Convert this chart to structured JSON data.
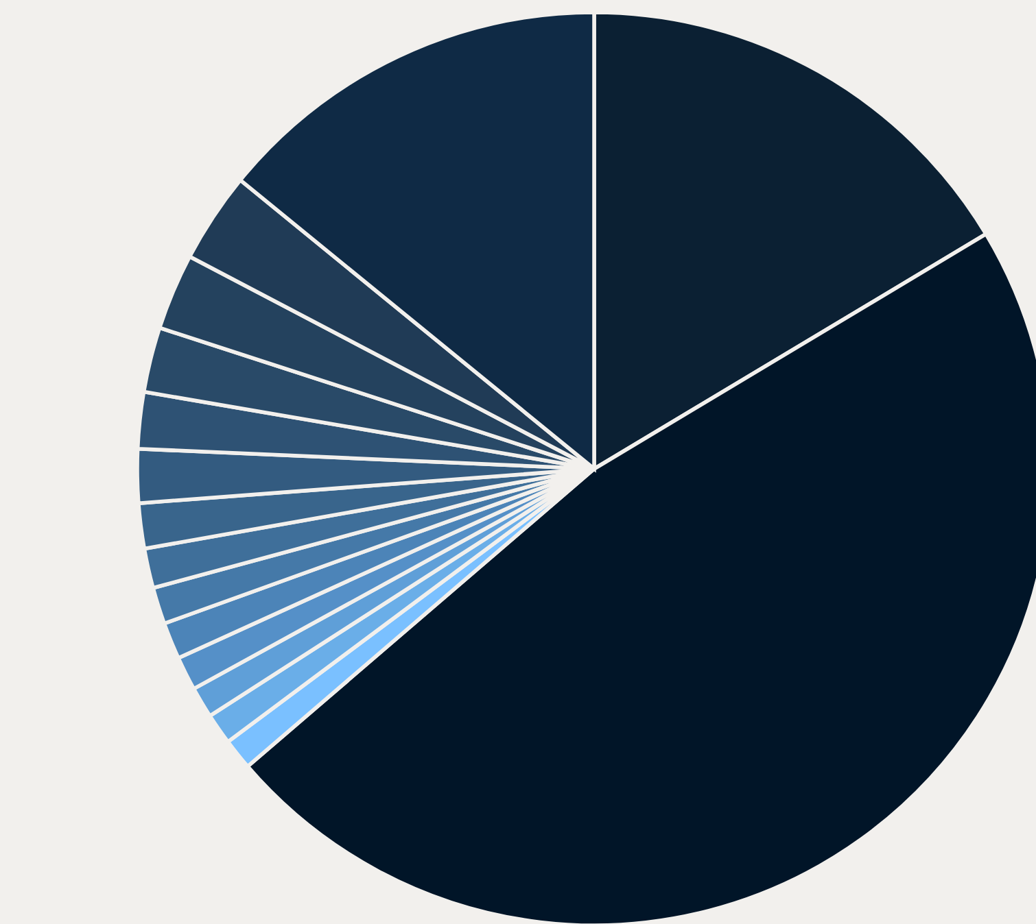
{
  "chart_data": {
    "type": "pie",
    "categories": [
      null,
      null,
      null,
      null,
      null,
      null,
      null,
      null,
      null,
      null,
      null,
      null,
      null,
      null,
      null,
      null
    ],
    "values": [
      16.4,
      47.3,
      1.1,
      1.1,
      1.1,
      1.2,
      1.3,
      1.3,
      1.4,
      1.6,
      1.9,
      2.0,
      2.3,
      2.7,
      3.2,
      14.1
    ],
    "colors": [
      "#0b2033",
      "#011528",
      "#7ac0ff",
      "#6aaee8",
      "#5f9fd8",
      "#5590c8",
      "#4c84b8",
      "#4579a8",
      "#3f6f9a",
      "#39658c",
      "#335b80",
      "#2e5274",
      "#294a68",
      "#24425e",
      "#203b56",
      "#0f2a45"
    ]
  }
}
